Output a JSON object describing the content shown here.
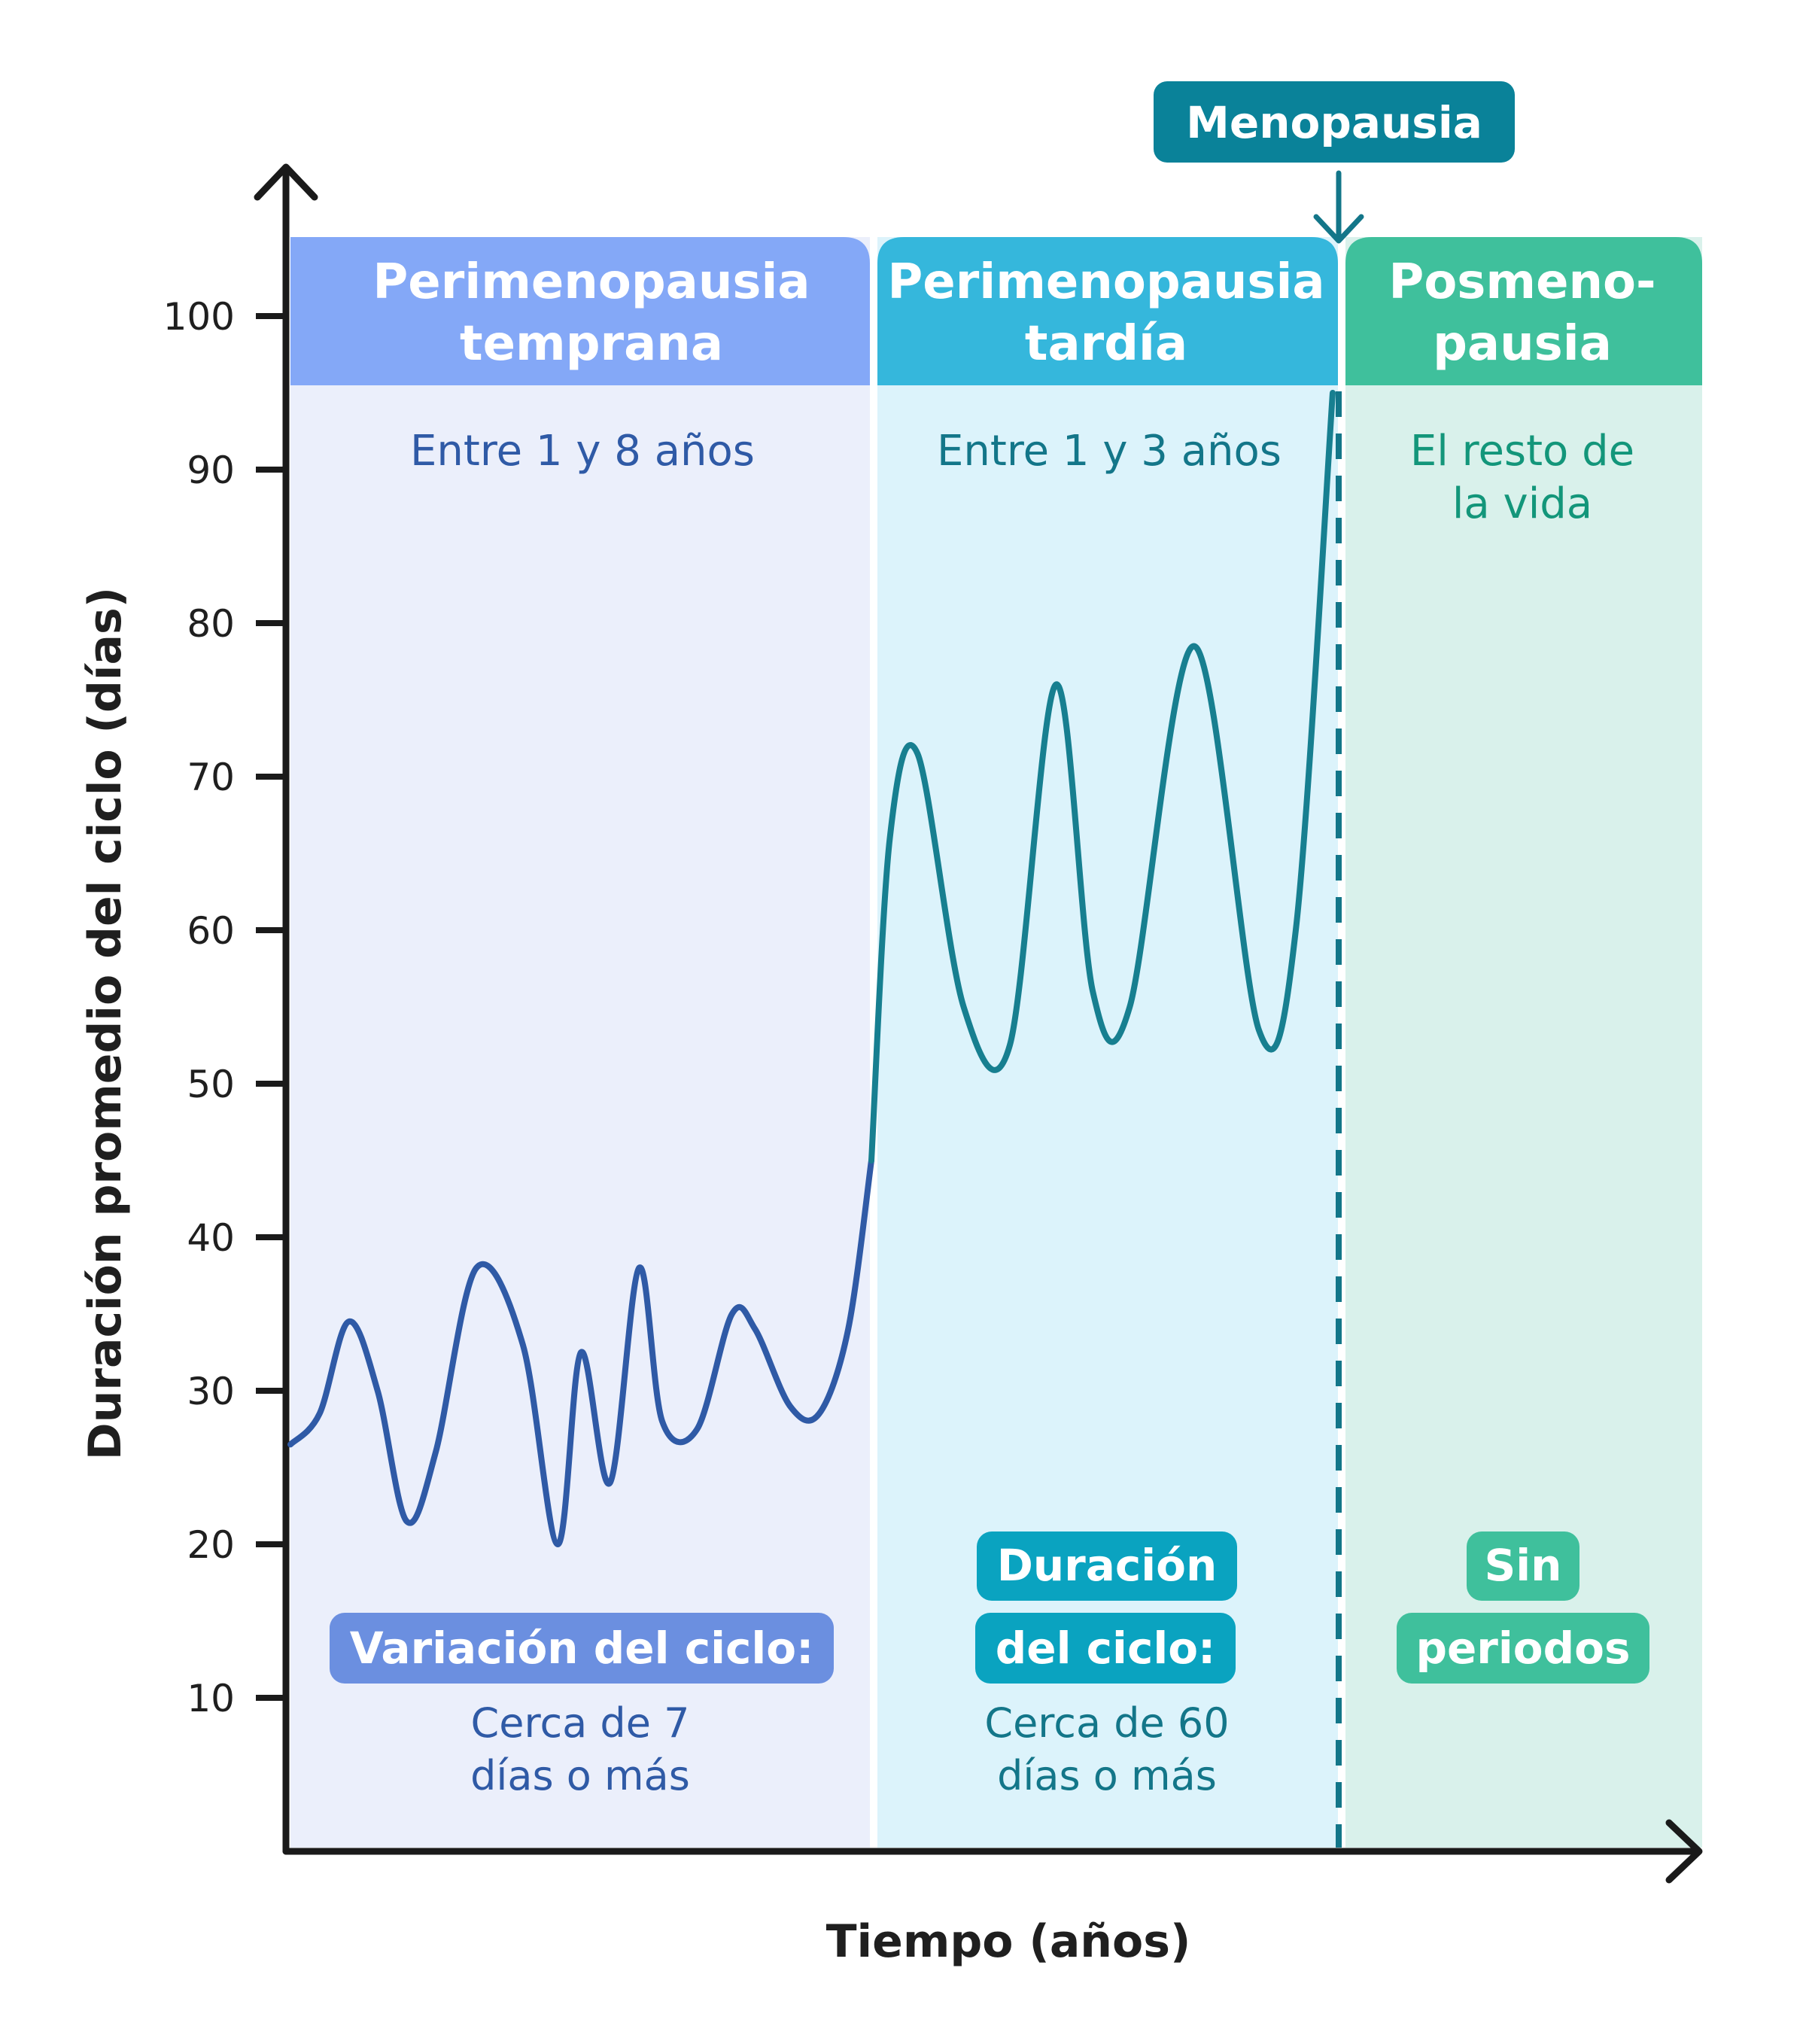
{
  "chart_data": {
    "type": "line",
    "title": "",
    "xlabel": "Tiempo (años)",
    "ylabel": "Duración promedio del ciclo (días)",
    "ylim": [
      0,
      100
    ],
    "yticks": [
      "10",
      "20",
      "30",
      "40",
      "50",
      "60",
      "70",
      "80",
      "90",
      "100"
    ],
    "grid": false,
    "series": [
      {
        "color": "#2f5aa6",
        "x": [
          0,
          0.05,
          0.1,
          0.15,
          0.2,
          0.25,
          0.32,
          0.4,
          0.46,
          0.5,
          0.55,
          0.6,
          0.64,
          0.7,
          0.76,
          0.8,
          0.86,
          0.91,
          0.96,
          1.0
        ],
        "y": [
          26.5,
          28.5,
          34.5,
          30,
          21.5,
          26,
          38,
          33,
          20,
          32.5,
          24,
          38,
          28,
          27.5,
          35,
          34,
          29,
          28.5,
          34,
          45
        ]
      },
      {
        "color": "#177f90",
        "x": [
          1.0,
          1.04,
          1.1,
          1.2,
          1.3,
          1.4,
          1.48,
          1.56,
          1.7,
          1.84,
          1.92,
          2.0
        ],
        "y": [
          45,
          66,
          71.5,
          55,
          52.5,
          76,
          56,
          55,
          78.5,
          53.5,
          60,
          95
        ]
      }
    ],
    "phases": [
      {
        "title_lines": [
          "Perimenopausia",
          "temprana"
        ],
        "duration": "Entre 1 y 8 años",
        "badge_lines": [
          "Variación del ciclo:"
        ],
        "note_lines": [
          "Cerca de 7",
          "días o más"
        ],
        "header_color": "#84a8f7",
        "bg_color": "#ebeffb",
        "text_color": "#2f5aa6",
        "badge_color": "#6b8fe0"
      },
      {
        "title_lines": [
          "Perimenopausia",
          "tardía"
        ],
        "duration": "Entre 1 y 3 años",
        "badge_lines": [
          "Duración",
          "del ciclo:"
        ],
        "note_lines": [
          "Cerca de 60",
          "días o más"
        ],
        "header_color": "#35b7dc",
        "bg_color": "#dcf3fb",
        "text_color": "#137689",
        "badge_color": "#0aa3c0"
      },
      {
        "title_lines": [
          "Posmeno-",
          "pausia"
        ],
        "duration_lines": [
          "El resto de",
          "la vida"
        ],
        "badge_lines": [
          "Sin",
          "periodos"
        ],
        "header_color": "#3fc09c",
        "bg_color": "#d9f1eb",
        "text_color": "#13967a",
        "badge_color": "#3fc09c"
      }
    ],
    "annotation": {
      "label": "Menopausia",
      "color": "#0a8299",
      "line_color": "#137689"
    }
  }
}
